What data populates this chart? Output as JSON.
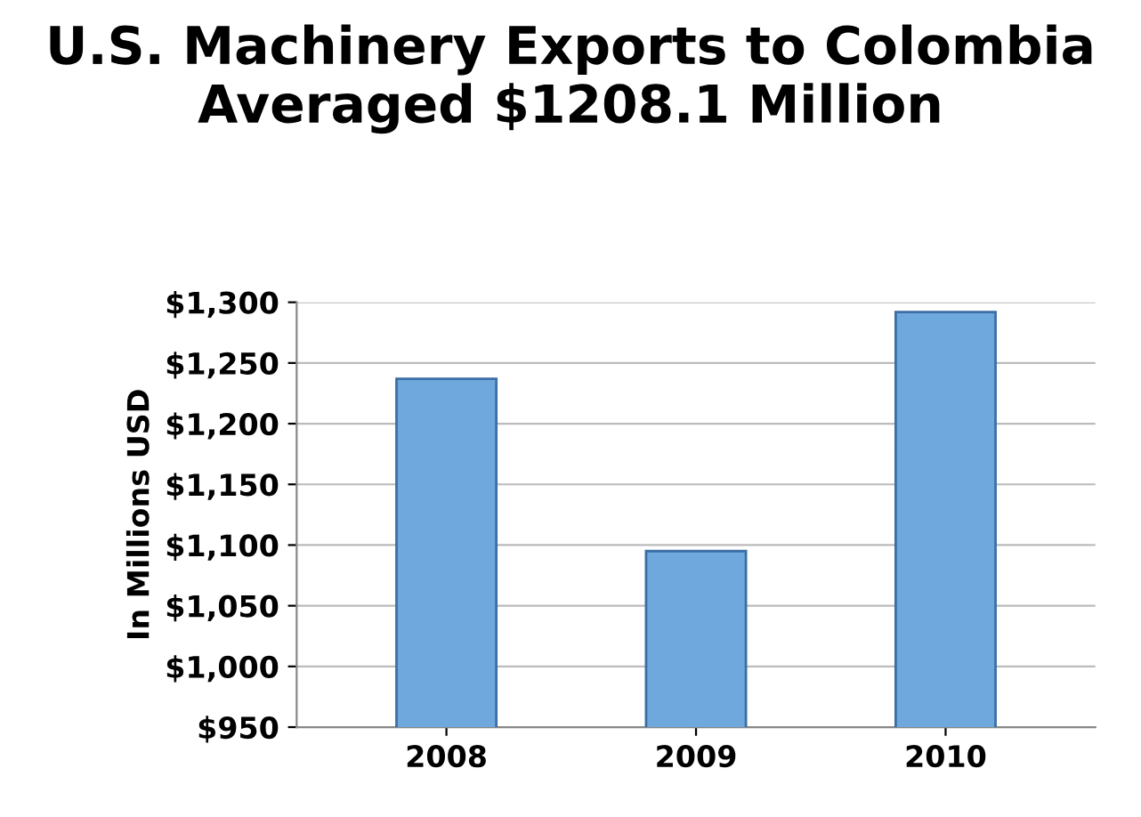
{
  "chart_data": {
    "type": "bar",
    "title": "U.S. Machinery Exports to Colombia Averaged $1208.1 Million",
    "ylabel": "In Millions USD",
    "categories": [
      "2008",
      "2009",
      "2010"
    ],
    "values": [
      1237,
      1095,
      1292
    ],
    "color": "#6fa8dc",
    "ylim": [
      950,
      1300
    ],
    "yticks": [
      {
        "value": 950,
        "label": "$950"
      },
      {
        "value": 1000,
        "label": "$1,000"
      },
      {
        "value": 1050,
        "label": "$1,050"
      },
      {
        "value": 1100,
        "label": "$1,100"
      },
      {
        "value": 1150,
        "label": "$1,150"
      },
      {
        "value": 1200,
        "label": "$1,200"
      },
      {
        "value": 1250,
        "label": "$1,250"
      },
      {
        "value": 1300,
        "label": "$1,300"
      }
    ],
    "grid": "y",
    "legend": false
  }
}
